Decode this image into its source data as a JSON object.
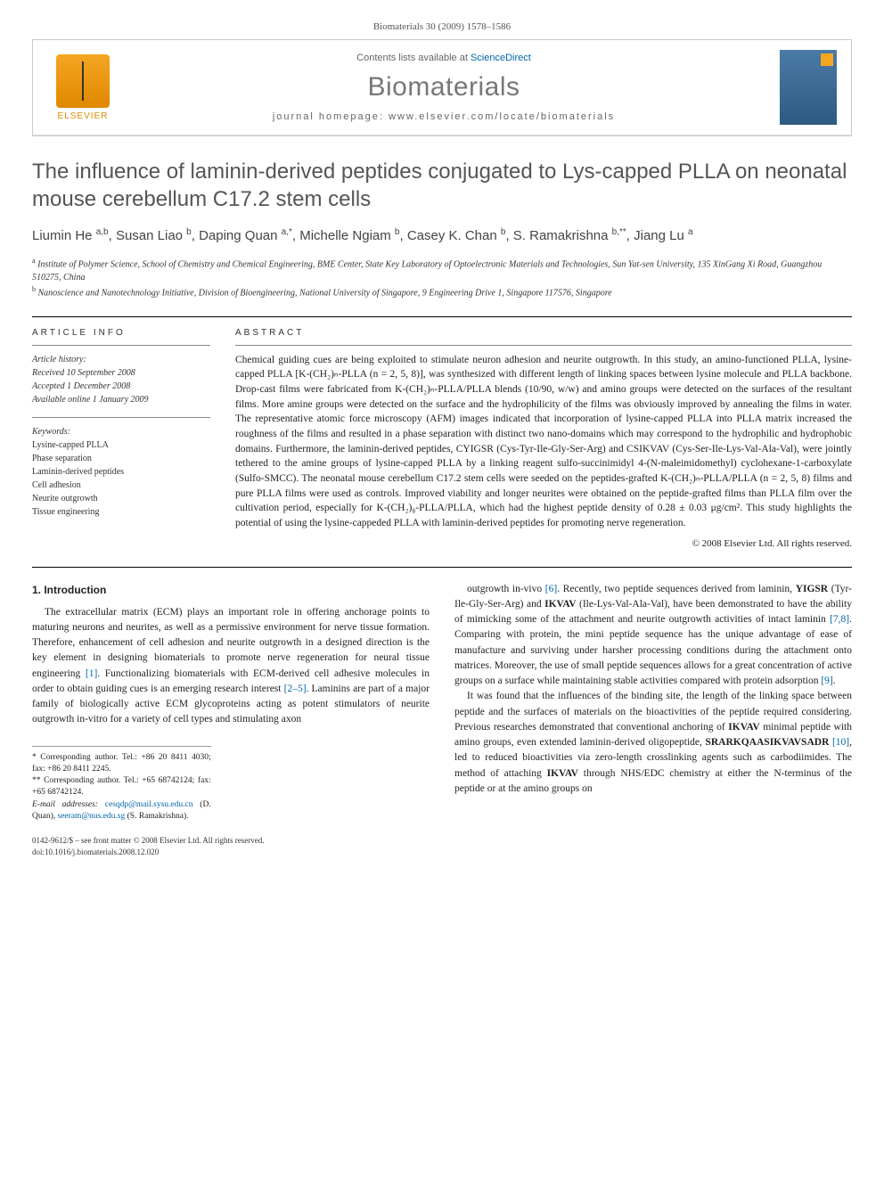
{
  "citation": "Biomaterials 30 (2009) 1578–1586",
  "header": {
    "contents_prefix": "Contents lists available at ",
    "contents_link": "ScienceDirect",
    "journal": "Biomaterials",
    "homepage": "journal homepage: www.elsevier.com/locate/biomaterials",
    "publisher_logo_text": "ELSEVIER"
  },
  "title": "The influence of laminin-derived peptides conjugated to Lys-capped PLLA on neonatal mouse cerebellum C17.2 stem cells",
  "authors_html": "Liumin He <sup>a,b</sup>, Susan Liao <sup>b</sup>, Daping Quan <sup>a,*</sup>, Michelle Ngiam <sup>b</sup>, Casey K. Chan <sup>b</sup>, S. Ramakrishna <sup>b,**</sup>, Jiang Lu <sup>a</sup>",
  "affiliations": {
    "a": "Institute of Polymer Science, School of Chemistry and Chemical Engineering, BME Center, State Key Laboratory of Optoelectronic Materials and Technologies, Sun Yat-sen University, 135 XinGang Xi Road, Guangzhou 510275, China",
    "b": "Nanoscience and Nanotechnology Initiative, Division of Bioengineering, National University of Singapore, 9 Engineering Drive 1, Singapore 117576, Singapore"
  },
  "article_info": {
    "label": "ARTICLE INFO",
    "history_head": "Article history:",
    "received": "Received 10 September 2008",
    "accepted": "Accepted 1 December 2008",
    "online": "Available online 1 January 2009",
    "keywords_head": "Keywords:",
    "keywords": [
      "Lysine-capped PLLA",
      "Phase separation",
      "Laminin-derived peptides",
      "Cell adhesion",
      "Neurite outgrowth",
      "Tissue engineering"
    ]
  },
  "abstract": {
    "label": "ABSTRACT",
    "text": "Chemical guiding cues are being exploited to stimulate neuron adhesion and neurite outgrowth. In this study, an amino-functioned PLLA, lysine-capped PLLA [K-(CH₂)ₙ-PLLA (n = 2, 5, 8)], was synthesized with different length of linking spaces between lysine molecule and PLLA backbone. Drop-cast films were fabricated from K-(CH₂)ₙ-PLLA/PLLA blends (10/90, w/w) and amino groups were detected on the surfaces of the resultant films. More amine groups were detected on the surface and the hydrophilicity of the films was obviously improved by annealing the films in water. The representative atomic force microscopy (AFM) images indicated that incorporation of lysine-capped PLLA into PLLA matrix increased the roughness of the films and resulted in a phase separation with distinct two nano-domains which may correspond to the hydrophilic and hydrophobic domains. Furthermore, the laminin-derived peptides, CYIGSR (Cys-Tyr-Ile-Gly-Ser-Arg) and CSIKVAV (Cys-Ser-Ile-Lys-Val-Ala-Val), were jointly tethered to the amine groups of lysine-capped PLLA by a linking reagent sulfo-succinimidyl 4-(N-maleimidomethyl) cyclohexane-1-carboxylate (Sulfo-SMCC). The neonatal mouse cerebellum C17.2 stem cells were seeded on the peptides-grafted K-(CH₂)ₙ-PLLA/PLLA (n = 2, 5, 8) films and pure PLLA films were used as controls. Improved viability and longer neurites were obtained on the peptide-grafted films than PLLA film over the cultivation period, especially for K-(CH₂)₈-PLLA/PLLA, which had the highest peptide density of 0.28 ± 0.03 μg/cm². This study highlights the potential of using the lysine-cappeded PLLA with laminin-derived peptides for promoting nerve regeneration.",
    "copyright": "© 2008 Elsevier Ltd. All rights reserved."
  },
  "body": {
    "section_heading": "1. Introduction",
    "col1_p1": "The extracellular matrix (ECM) plays an important role in offering anchorage points to maturing neurons and neurites, as well as a permissive environment for nerve tissue formation. Therefore, enhancement of cell adhesion and neurite outgrowth in a designed direction is the key element in designing biomaterials to promote nerve regeneration for neural tissue engineering [1]. Functionalizing biomaterials with ECM-derived cell adhesive molecules in order to obtain guiding cues is an emerging research interest [2–5]. Laminins are part of a major family of biologically active ECM glycoproteins acting as potent stimulators of neurite outgrowth in-vitro for a variety of cell types and stimulating axon",
    "col2_p1": "outgrowth in-vivo [6]. Recently, two peptide sequences derived from laminin, YIGSR (Tyr-Ile-Gly-Ser-Arg) and IKVAV (Ile-Lys-Val-Ala-Val), have been demonstrated to have the ability of mimicking some of the attachment and neurite outgrowth activities of intact laminin [7,8]. Comparing with protein, the mini peptide sequence has the unique advantage of ease of manufacture and surviving under harsher processing conditions during the attachment onto matrices. Moreover, the use of small peptide sequences allows for a great concentration of active groups on a surface while maintaining stable activities compared with protein adsorption [9].",
    "col2_p2": "It was found that the influences of the binding site, the length of the linking space between peptide and the surfaces of materials on the bioactivities of the peptide required considering. Previous researches demonstrated that conventional anchoring of IKVAV minimal peptide with amino groups, even extended laminin-derived oligopeptide, SRARKQAASIKVAVSADR [10], led to reduced bioactivities via zero-length crosslinking agents such as carbodiimides. The method of attaching IKVAV through NHS/EDC chemistry at either the N-terminus of the peptide or at the amino groups on"
  },
  "footnotes": {
    "corr1": "* Corresponding author. Tel.: +86 20 8411 4030; fax: +86 20 8411 2245.",
    "corr2": "** Corresponding author. Tel.: +65 68742124; fax: +65 68742124.",
    "emails_prefix": "E-mail addresses: ",
    "email1": "cesqdp@mail.sysu.edu.cn",
    "email1_who": " (D. Quan), ",
    "email2": "seeram@nus.edu.sg",
    "email2_who": " (S. Ramakrishna)."
  },
  "footer": {
    "line1": "0142-9612/$ – see front matter © 2008 Elsevier Ltd. All rights reserved.",
    "line2": "doi:10.1016/j.biomaterials.2008.12.020"
  },
  "colors": {
    "link": "#0066aa",
    "logo": "#e08800",
    "title_gray": "#555555"
  }
}
